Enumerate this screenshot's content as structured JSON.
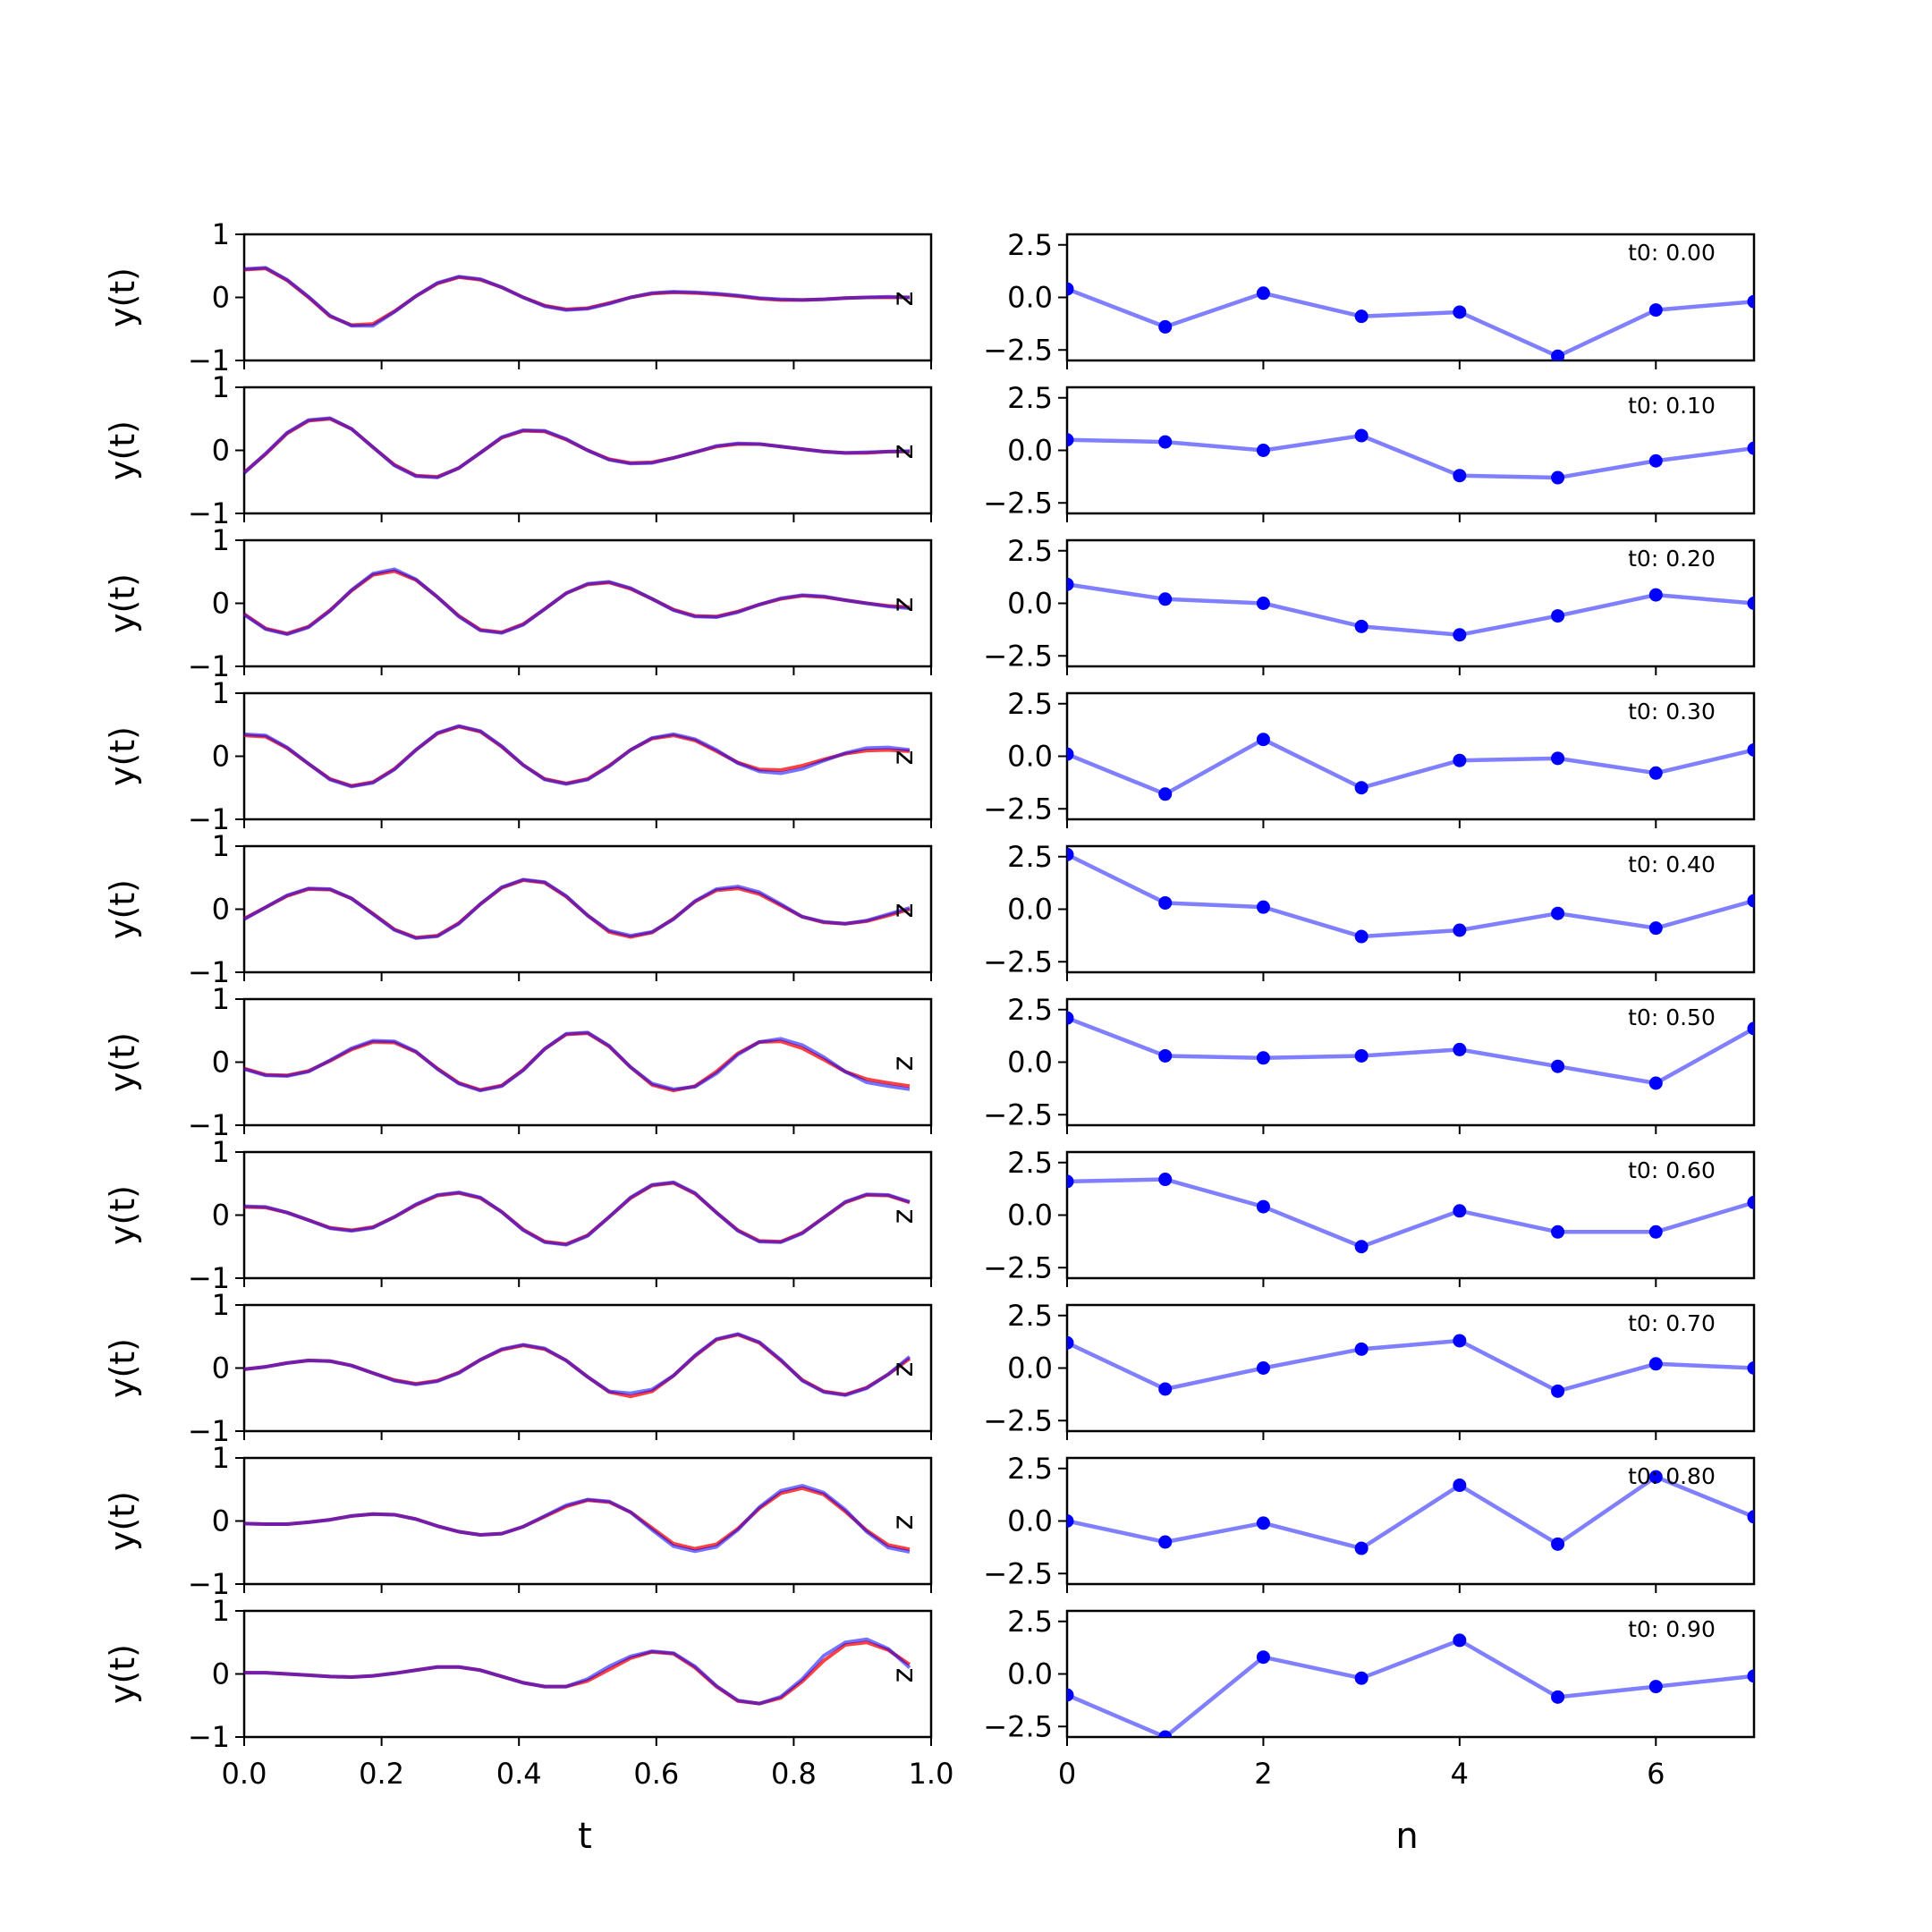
{
  "chart_data": {
    "type": "line",
    "columns": [
      {
        "kind": "signal",
        "xlabel": "t",
        "ylabel": "y(t)",
        "xlim": [
          0.0,
          1.0
        ],
        "ylim": [
          -1,
          1
        ],
        "xticks": [
          "0.0",
          "0.2",
          "0.4",
          "0.6",
          "0.8",
          "1.0"
        ],
        "yticks": [
          "−1",
          "0",
          "1"
        ],
        "side_label": "z",
        "series_colors": [
          "#ff0000",
          "#0000ff"
        ]
      },
      {
        "kind": "coefficients",
        "xlabel": "n",
        "xlim": [
          0,
          7
        ],
        "ylim": [
          -3.0,
          3.0
        ],
        "xticks": [
          "0",
          "2",
          "4",
          "6"
        ],
        "yticks": [
          "2.5",
          "0.0",
          "−2.5"
        ],
        "series_color": "#0000ff"
      }
    ],
    "x_signal": [
      0.0,
      0.03125,
      0.0625,
      0.09375,
      0.125,
      0.15625,
      0.1875,
      0.21875,
      0.25,
      0.28125,
      0.3125,
      0.34375,
      0.375,
      0.40625,
      0.4375,
      0.46875,
      0.5,
      0.53125,
      0.5625,
      0.59375,
      0.625,
      0.65625,
      0.6875,
      0.71875,
      0.75,
      0.78125,
      0.8125,
      0.84375,
      0.875,
      0.90625,
      0.9375,
      0.96875
    ],
    "x_coef": [
      0,
      1,
      2,
      3,
      4,
      5,
      6,
      7
    ],
    "rows": [
      {
        "label": "t0: 0.00",
        "y_red": [
          0.44,
          0.46,
          0.27,
          0.0,
          -0.3,
          -0.44,
          -0.42,
          -0.22,
          0.02,
          0.22,
          0.32,
          0.28,
          0.16,
          0.0,
          -0.13,
          -0.19,
          -0.17,
          -0.09,
          0.0,
          0.06,
          0.08,
          0.07,
          0.05,
          0.02,
          -0.02,
          -0.04,
          -0.04,
          -0.03,
          -0.01,
          0.0,
          0.0,
          0.0
        ],
        "y_blue": [
          0.45,
          0.47,
          0.28,
          0.01,
          -0.29,
          -0.45,
          -0.45,
          -0.23,
          0.02,
          0.23,
          0.33,
          0.29,
          0.16,
          0.0,
          -0.14,
          -0.2,
          -0.18,
          -0.1,
          0.0,
          0.07,
          0.09,
          0.08,
          0.06,
          0.03,
          -0.01,
          -0.03,
          -0.04,
          -0.03,
          -0.01,
          0.0,
          0.01,
          0.0
        ],
        "coef": [
          0.4,
          -1.4,
          0.2,
          -0.9,
          -0.7,
          -2.8,
          -0.6,
          -0.2
        ]
      },
      {
        "label": "t0: 0.10",
        "y_red": [
          -0.35,
          -0.06,
          0.27,
          0.47,
          0.5,
          0.34,
          0.05,
          -0.23,
          -0.4,
          -0.42,
          -0.28,
          -0.04,
          0.2,
          0.31,
          0.3,
          0.17,
          0.0,
          -0.14,
          -0.2,
          -0.19,
          -0.12,
          -0.03,
          0.06,
          0.1,
          0.1,
          0.06,
          0.02,
          -0.02,
          -0.04,
          -0.04,
          -0.02,
          -0.02
        ],
        "y_blue": [
          -0.36,
          -0.05,
          0.28,
          0.48,
          0.51,
          0.34,
          0.05,
          -0.24,
          -0.41,
          -0.43,
          -0.28,
          -0.04,
          0.21,
          0.32,
          0.31,
          0.18,
          0.0,
          -0.15,
          -0.21,
          -0.2,
          -0.12,
          -0.03,
          0.07,
          0.11,
          0.1,
          0.06,
          0.02,
          -0.02,
          -0.04,
          -0.03,
          -0.02,
          -0.01
        ],
        "coef": [
          0.5,
          0.4,
          0.0,
          0.7,
          -1.2,
          -1.3,
          -0.5,
          0.1
        ]
      },
      {
        "label": "t0: 0.20",
        "y_red": [
          -0.17,
          -0.4,
          -0.48,
          -0.37,
          -0.11,
          0.2,
          0.45,
          0.51,
          0.37,
          0.1,
          -0.2,
          -0.42,
          -0.46,
          -0.33,
          -0.09,
          0.16,
          0.3,
          0.33,
          0.23,
          0.07,
          -0.1,
          -0.2,
          -0.21,
          -0.13,
          -0.02,
          0.07,
          0.12,
          0.1,
          0.05,
          0.0,
          -0.04,
          -0.06
        ],
        "y_blue": [
          -0.18,
          -0.41,
          -0.49,
          -0.38,
          -0.12,
          0.21,
          0.47,
          0.54,
          0.38,
          0.1,
          -0.21,
          -0.43,
          -0.47,
          -0.34,
          -0.09,
          0.16,
          0.31,
          0.34,
          0.24,
          0.07,
          -0.11,
          -0.21,
          -0.22,
          -0.14,
          -0.02,
          0.08,
          0.13,
          0.11,
          0.05,
          0.0,
          -0.05,
          -0.08
        ],
        "coef": [
          0.9,
          0.2,
          0.0,
          -1.1,
          -1.5,
          -0.6,
          0.4,
          0.0
        ]
      },
      {
        "label": "t0: 0.30",
        "y_red": [
          0.33,
          0.31,
          0.13,
          -0.12,
          -0.36,
          -0.47,
          -0.41,
          -0.2,
          0.1,
          0.36,
          0.47,
          0.39,
          0.15,
          -0.14,
          -0.36,
          -0.43,
          -0.36,
          -0.15,
          0.1,
          0.28,
          0.33,
          0.25,
          0.08,
          -0.1,
          -0.21,
          -0.22,
          -0.15,
          -0.05,
          0.04,
          0.09,
          0.1,
          0.08
        ],
        "y_blue": [
          0.35,
          0.33,
          0.14,
          -0.12,
          -0.37,
          -0.48,
          -0.42,
          -0.21,
          0.1,
          0.37,
          0.48,
          0.4,
          0.16,
          -0.14,
          -0.37,
          -0.44,
          -0.37,
          -0.16,
          0.1,
          0.29,
          0.35,
          0.27,
          0.1,
          -0.11,
          -0.24,
          -0.27,
          -0.2,
          -0.07,
          0.05,
          0.13,
          0.14,
          0.1
        ],
        "coef": [
          0.1,
          -1.8,
          0.8,
          -1.5,
          -0.2,
          -0.1,
          -0.8,
          0.3
        ]
      },
      {
        "label": "t0: 0.40",
        "y_red": [
          -0.15,
          0.03,
          0.21,
          0.32,
          0.31,
          0.17,
          -0.07,
          -0.32,
          -0.45,
          -0.42,
          -0.22,
          0.08,
          0.34,
          0.46,
          0.42,
          0.2,
          -0.1,
          -0.36,
          -0.44,
          -0.37,
          -0.15,
          0.12,
          0.3,
          0.33,
          0.24,
          0.06,
          -0.12,
          -0.21,
          -0.23,
          -0.19,
          -0.1,
          0.0
        ],
        "y_blue": [
          -0.16,
          0.03,
          0.22,
          0.33,
          0.32,
          0.17,
          -0.08,
          -0.33,
          -0.46,
          -0.43,
          -0.23,
          0.08,
          0.35,
          0.47,
          0.43,
          0.21,
          -0.1,
          -0.34,
          -0.42,
          -0.36,
          -0.16,
          0.13,
          0.32,
          0.36,
          0.27,
          0.08,
          -0.12,
          -0.2,
          -0.23,
          -0.18,
          -0.08,
          0.02
        ],
        "coef": [
          2.6,
          0.3,
          0.1,
          -1.3,
          -1.0,
          -0.2,
          -0.9,
          0.4
        ]
      },
      {
        "label": "t0: 0.50",
        "y_red": [
          -0.1,
          -0.2,
          -0.21,
          -0.14,
          0.02,
          0.2,
          0.32,
          0.31,
          0.16,
          -0.1,
          -0.33,
          -0.44,
          -0.37,
          -0.12,
          0.21,
          0.44,
          0.46,
          0.25,
          -0.08,
          -0.36,
          -0.45,
          -0.38,
          -0.15,
          0.14,
          0.32,
          0.33,
          0.22,
          0.04,
          -0.15,
          -0.27,
          -0.33,
          -0.38
        ],
        "y_blue": [
          -0.11,
          -0.21,
          -0.22,
          -0.15,
          0.03,
          0.22,
          0.34,
          0.33,
          0.17,
          -0.11,
          -0.34,
          -0.45,
          -0.38,
          -0.13,
          0.21,
          0.45,
          0.47,
          0.26,
          -0.08,
          -0.34,
          -0.43,
          -0.39,
          -0.18,
          0.12,
          0.32,
          0.37,
          0.27,
          0.08,
          -0.15,
          -0.32,
          -0.38,
          -0.43
        ],
        "coef": [
          2.1,
          0.3,
          0.2,
          0.3,
          0.6,
          -0.2,
          -1.0,
          1.6
        ]
      },
      {
        "label": "t0: 0.60",
        "y_red": [
          0.13,
          0.12,
          0.04,
          -0.08,
          -0.2,
          -0.24,
          -0.19,
          -0.03,
          0.16,
          0.31,
          0.35,
          0.27,
          0.05,
          -0.23,
          -0.42,
          -0.46,
          -0.32,
          -0.03,
          0.27,
          0.47,
          0.51,
          0.34,
          0.04,
          -0.24,
          -0.41,
          -0.42,
          -0.28,
          -0.04,
          0.2,
          0.32,
          0.31,
          0.2
        ],
        "y_blue": [
          0.14,
          0.13,
          0.04,
          -0.08,
          -0.21,
          -0.25,
          -0.2,
          -0.03,
          0.17,
          0.32,
          0.36,
          0.28,
          0.05,
          -0.24,
          -0.43,
          -0.47,
          -0.33,
          -0.03,
          0.28,
          0.48,
          0.52,
          0.35,
          0.04,
          -0.25,
          -0.42,
          -0.43,
          -0.29,
          -0.04,
          0.21,
          0.33,
          0.32,
          0.21
        ],
        "coef": [
          1.6,
          1.7,
          0.4,
          -1.5,
          0.2,
          -0.8,
          -0.8,
          0.6
        ]
      },
      {
        "label": "t0: 0.70",
        "y_red": [
          -0.02,
          0.02,
          0.08,
          0.12,
          0.11,
          0.04,
          -0.08,
          -0.19,
          -0.25,
          -0.2,
          -0.07,
          0.13,
          0.29,
          0.36,
          0.3,
          0.12,
          -0.14,
          -0.38,
          -0.45,
          -0.37,
          -0.12,
          0.19,
          0.45,
          0.53,
          0.4,
          0.12,
          -0.19,
          -0.37,
          -0.42,
          -0.31,
          -0.1,
          0.15
        ],
        "y_blue": [
          -0.02,
          0.02,
          0.08,
          0.12,
          0.11,
          0.04,
          -0.08,
          -0.2,
          -0.26,
          -0.21,
          -0.08,
          0.13,
          0.3,
          0.37,
          0.31,
          0.12,
          -0.14,
          -0.37,
          -0.4,
          -0.34,
          -0.12,
          0.2,
          0.46,
          0.54,
          0.41,
          0.13,
          -0.2,
          -0.38,
          -0.43,
          -0.32,
          -0.1,
          0.18
        ],
        "coef": [
          1.2,
          -1.0,
          0.0,
          0.9,
          1.3,
          -1.1,
          0.2,
          0.0
        ]
      },
      {
        "label": "t0: 0.80",
        "y_red": [
          -0.04,
          -0.05,
          -0.05,
          -0.02,
          0.02,
          0.08,
          0.11,
          0.1,
          0.03,
          -0.08,
          -0.17,
          -0.22,
          -0.2,
          -0.09,
          0.07,
          0.23,
          0.33,
          0.3,
          0.14,
          -0.11,
          -0.36,
          -0.44,
          -0.37,
          -0.12,
          0.2,
          0.44,
          0.52,
          0.42,
          0.15,
          -0.15,
          -0.38,
          -0.45
        ],
        "y_blue": [
          -0.04,
          -0.05,
          -0.05,
          -0.02,
          0.02,
          0.08,
          0.11,
          0.1,
          0.03,
          -0.08,
          -0.17,
          -0.22,
          -0.2,
          -0.09,
          0.08,
          0.25,
          0.34,
          0.31,
          0.14,
          -0.14,
          -0.4,
          -0.48,
          -0.41,
          -0.14,
          0.22,
          0.48,
          0.56,
          0.45,
          0.18,
          -0.17,
          -0.42,
          -0.49
        ],
        "coef": [
          0.0,
          -1.0,
          -0.1,
          -1.3,
          1.7,
          -1.1,
          2.1,
          0.2
        ]
      },
      {
        "label": "t0: 0.90",
        "y_red": [
          0.02,
          0.02,
          0.0,
          -0.02,
          -0.04,
          -0.05,
          -0.03,
          0.01,
          0.06,
          0.11,
          0.11,
          0.06,
          -0.04,
          -0.14,
          -0.2,
          -0.2,
          -0.11,
          0.07,
          0.25,
          0.35,
          0.32,
          0.1,
          -0.2,
          -0.43,
          -0.47,
          -0.38,
          -0.12,
          0.21,
          0.46,
          0.5,
          0.38,
          0.15
        ],
        "y_blue": [
          0.02,
          0.02,
          0.0,
          -0.02,
          -0.04,
          -0.05,
          -0.03,
          0.01,
          0.06,
          0.11,
          0.11,
          0.06,
          -0.04,
          -0.14,
          -0.2,
          -0.2,
          -0.08,
          0.12,
          0.28,
          0.36,
          0.33,
          0.12,
          -0.19,
          -0.42,
          -0.47,
          -0.36,
          -0.08,
          0.29,
          0.5,
          0.55,
          0.4,
          0.1
        ],
        "coef": [
          -1.0,
          -3.0,
          0.8,
          -0.2,
          1.6,
          -1.1,
          -0.6,
          -0.1
        ]
      }
    ]
  }
}
